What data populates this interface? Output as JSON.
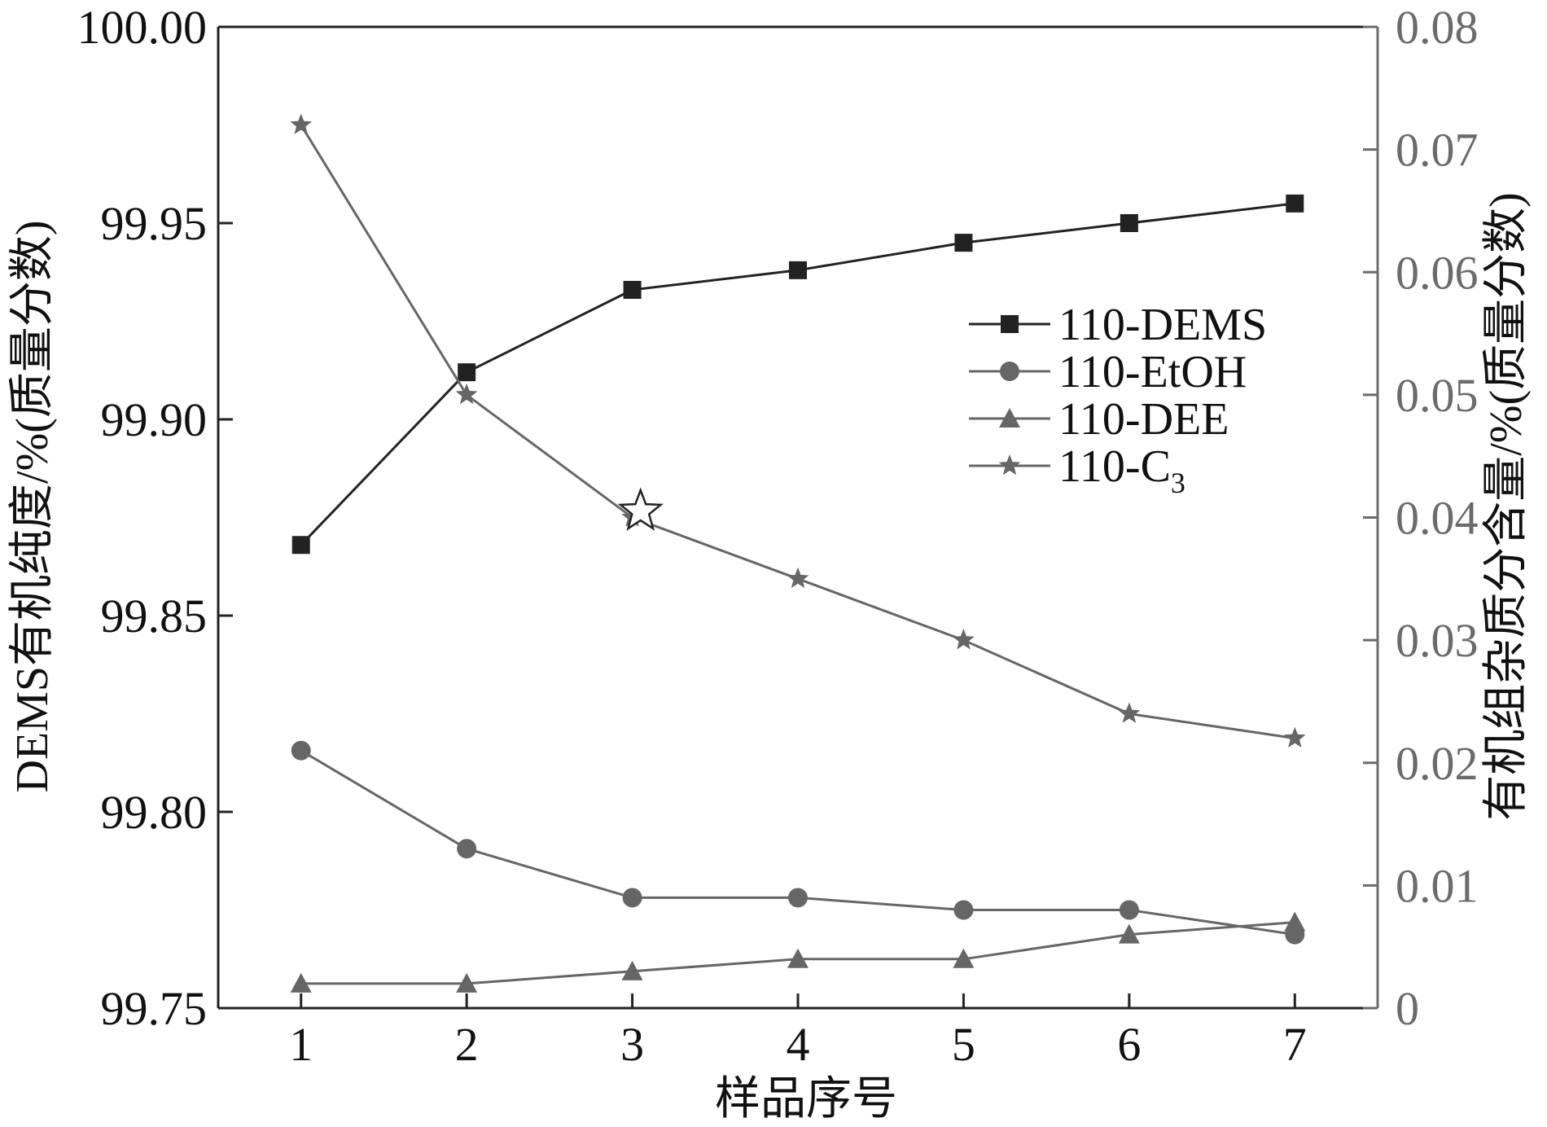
{
  "chart_data": {
    "type": "line",
    "xlabel": "样品序号",
    "ylabel_left": "DEMS有机纯度/%(质量分数)",
    "ylabel_right": "有机组杂质分含量/%(质量分数)",
    "x": [
      1,
      2,
      3,
      4,
      5,
      6,
      7
    ],
    "x_ticks": [
      "1",
      "2",
      "3",
      "4",
      "5",
      "6",
      "7"
    ],
    "xlim": [
      0.5,
      7.5
    ],
    "ylim_left": [
      99.75,
      100.0
    ],
    "ylim_right": [
      0,
      0.08
    ],
    "y_ticks_left": [
      "99.75",
      "99.80",
      "99.85",
      "99.90",
      "99.95",
      "100.00"
    ],
    "y_ticks_right": [
      "0",
      "0.01",
      "0.02",
      "0.03",
      "0.04",
      "0.05",
      "0.06",
      "0.07",
      "0.08"
    ],
    "grid": false,
    "legend_position": "upper-right",
    "series": [
      {
        "name": "110-DEMS",
        "axis": "left",
        "marker": "square",
        "color": "#222222",
        "values": [
          99.868,
          99.912,
          99.933,
          99.938,
          99.945,
          99.95,
          99.955
        ]
      },
      {
        "name": "110-EtOH",
        "axis": "right",
        "marker": "circle",
        "color": "#666666",
        "values": [
          0.021,
          0.013,
          0.009,
          0.009,
          0.008,
          0.008,
          0.006
        ]
      },
      {
        "name": "110-DEE",
        "axis": "right",
        "marker": "triangle",
        "color": "#666666",
        "values": [
          0.002,
          0.002,
          0.003,
          0.004,
          0.004,
          0.006,
          0.007
        ]
      },
      {
        "name": "110-C",
        "name_subscript": "3",
        "axis": "right",
        "marker": "star",
        "color": "#666666",
        "values": [
          0.072,
          0.05,
          0.04,
          0.035,
          0.03,
          0.024,
          0.022
        ]
      }
    ],
    "annotations": [
      {
        "type": "hollow-star-marker",
        "x": 3.05,
        "y_right": 0.0405
      }
    ]
  }
}
